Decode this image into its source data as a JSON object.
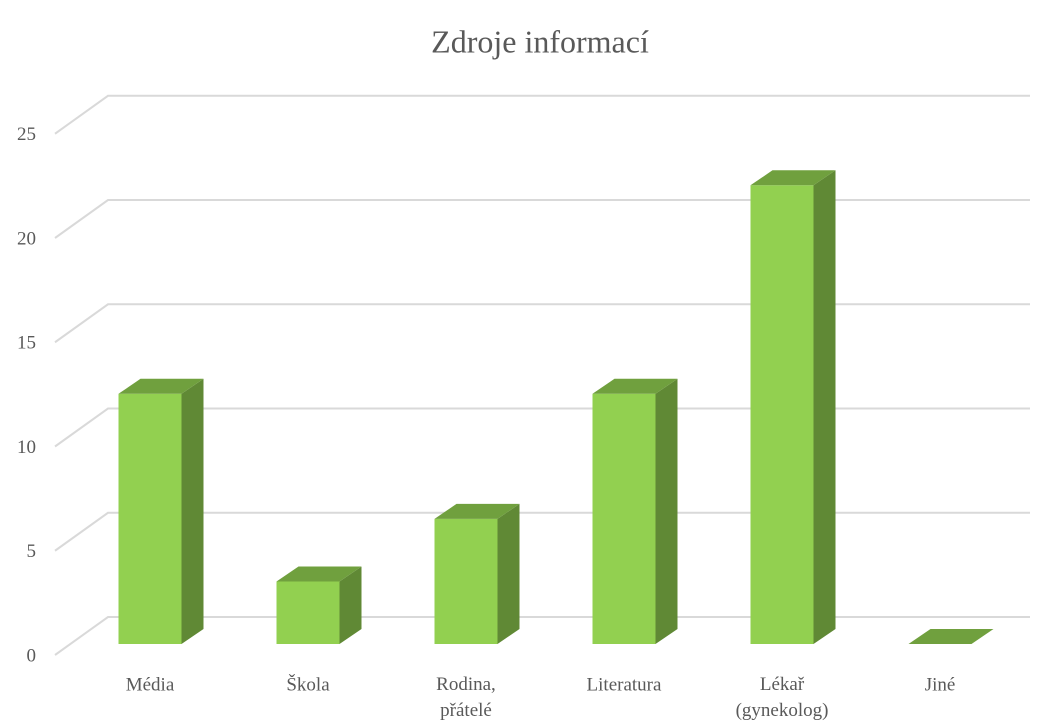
{
  "chart_data": {
    "type": "bar3d",
    "title": "Zdroje informací",
    "categories": [
      "Média",
      "Škola",
      "Rodina, přátelé",
      "Literatura",
      "Lékař (gynekolog)",
      "Jiné"
    ],
    "values": [
      12,
      3,
      6,
      12,
      22,
      0
    ],
    "color": "#92d050",
    "ylim": [
      0,
      25
    ],
    "yticks": [
      0,
      5,
      10,
      15,
      20,
      25
    ],
    "grid": true
  }
}
